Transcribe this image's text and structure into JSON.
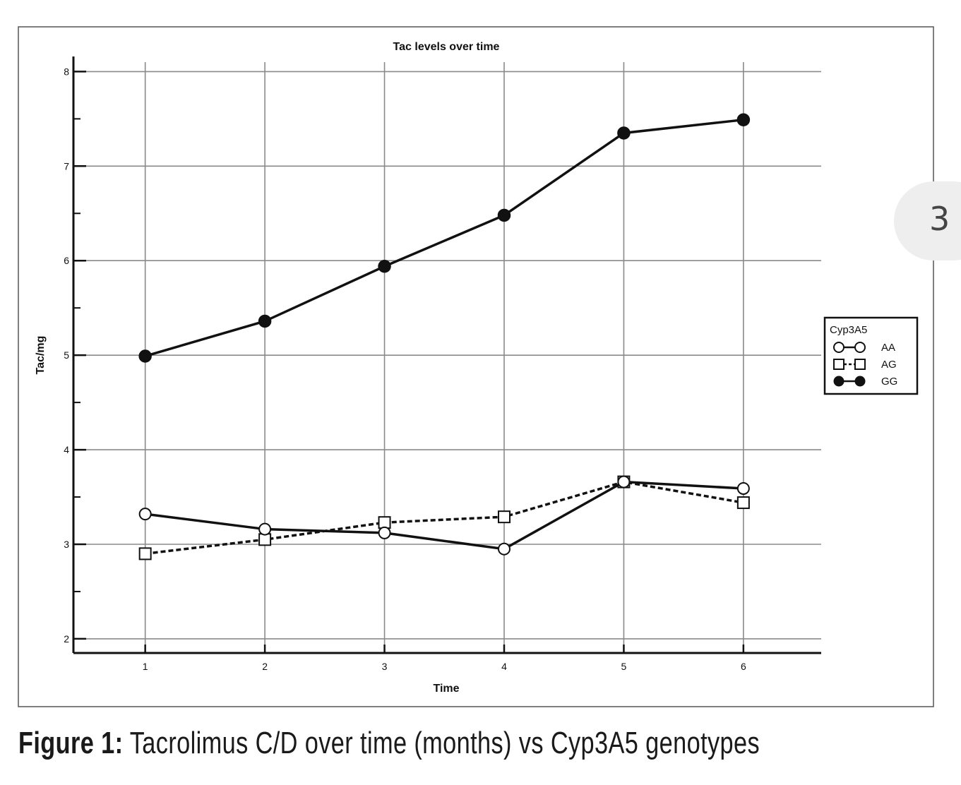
{
  "page_number": "3",
  "caption": {
    "label": "Figure 1:",
    "text": " Tacrolimus C/D over time (months) vs Cyp3A5 genotypes"
  },
  "chart_data": {
    "type": "line",
    "title": "Tac levels over time",
    "xlabel": "Time",
    "ylabel": "Tac/mg",
    "x": [
      1,
      2,
      3,
      4,
      5,
      6
    ],
    "xlim": [
      0.4,
      6.65
    ],
    "ylim": [
      1.85,
      8.1
    ],
    "yticks": [
      2,
      3,
      4,
      5,
      6,
      7,
      8
    ],
    "grid": true,
    "legend": {
      "title": "Cyp3A5",
      "placement": "right"
    },
    "series": [
      {
        "name": "AA",
        "values": [
          3.32,
          3.16,
          3.12,
          2.95,
          3.66,
          3.59
        ],
        "marker": "circle-open",
        "line": "solid"
      },
      {
        "name": "AG",
        "values": [
          2.9,
          3.05,
          3.23,
          3.29,
          3.66,
          3.44
        ],
        "marker": "square-open",
        "line": "dashed"
      },
      {
        "name": "GG",
        "values": [
          4.99,
          5.36,
          5.94,
          6.48,
          7.35,
          7.49
        ],
        "marker": "circle-filled",
        "line": "solid"
      }
    ]
  }
}
